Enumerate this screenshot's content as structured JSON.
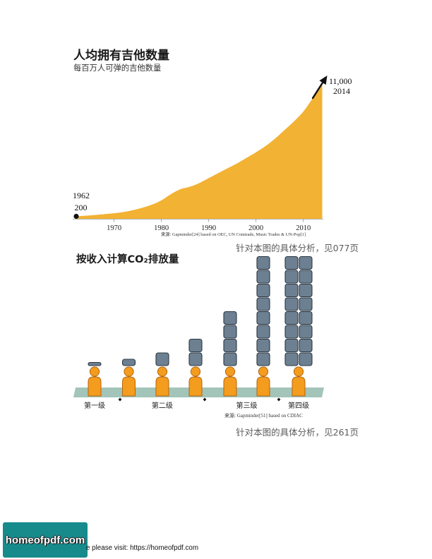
{
  "page": {
    "note_top": "针对本图的具体分析，见077页",
    "note_bottom": "针对本图的具体分析，见261页"
  },
  "footer": {
    "logo_text": "homeofpdf.com",
    "visit_text": "e please visit: https://homeofpdf.com",
    "logo_color": "#178A8C"
  },
  "chart_data": [
    {
      "type": "area",
      "title": "人均拥有吉他数量",
      "subtitle": "每百万人可弹的吉他数量",
      "x": [
        1962,
        1965,
        1968,
        1970,
        1972,
        1974,
        1976,
        1978,
        1980,
        1982,
        1984,
        1986,
        1988,
        1990,
        1992,
        1994,
        1996,
        1998,
        2000,
        2002,
        2004,
        2006,
        2008,
        2010,
        2012,
        2014
      ],
      "values": [
        200,
        280,
        380,
        450,
        550,
        700,
        900,
        1150,
        1500,
        2000,
        2400,
        2600,
        2900,
        3300,
        3700,
        4100,
        4500,
        4950,
        5400,
        5900,
        6500,
        7200,
        7900,
        8700,
        9800,
        11000
      ],
      "xticks": [
        1970,
        1980,
        1990,
        2000,
        2010
      ],
      "xlim": [
        1962,
        2014
      ],
      "ylim": [
        0,
        11000
      ],
      "start_label": {
        "year": "1962",
        "value": "200"
      },
      "end_label": {
        "value": "11,000",
        "year": "2014"
      },
      "source": "来源: Gapminder[24] based on OEC, UN Comtrade, Music Trades & UN-Pop[1]",
      "grid": false,
      "colors": {
        "area": "#F2B233",
        "marker": "#111111"
      }
    },
    {
      "type": "bar",
      "title": "按收入计算CO₂排放量",
      "categories": [
        "第一级",
        "第二级",
        "第三级",
        "第四级"
      ],
      "people": [
        {
          "level": 0,
          "blocks": 0.25
        },
        {
          "level": 1,
          "blocks": 0.5
        },
        {
          "level": 1,
          "blocks": 1
        },
        {
          "level": 1,
          "blocks": 2
        },
        {
          "level": 2,
          "blocks": 4
        },
        {
          "level": 2,
          "blocks": 8
        },
        {
          "level": 3,
          "blocks": 16
        }
      ],
      "source": "来源: Gapminder[51] based on CDIAC",
      "grid": false,
      "icons": {
        "person": "person-icon",
        "block": "co2-block-icon"
      },
      "colors": {
        "person": "#F39C1E",
        "block": "#6D8091",
        "ground": "#A3C4B9"
      }
    }
  ]
}
